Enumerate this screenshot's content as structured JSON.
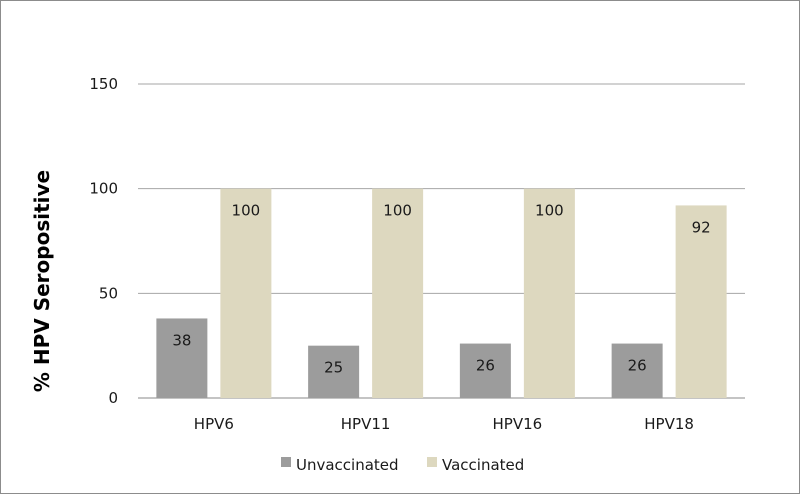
{
  "chart_data": {
    "type": "bar",
    "title": "",
    "xlabel": "",
    "ylabel": "% HPV Seropositive",
    "ylim": [
      0,
      150
    ],
    "yticks": [
      0,
      50,
      100,
      150
    ],
    "grid": true,
    "legend_position": "bottom",
    "categories": [
      "HPV6",
      "HPV11",
      "HPV16",
      "HPV18"
    ],
    "series": [
      {
        "name": "Unvaccinated",
        "color": "#9c9c9c",
        "values": [
          38,
          25,
          26,
          26
        ]
      },
      {
        "name": "Vaccinated",
        "color": "#ddd8bf",
        "values": [
          100,
          100,
          100,
          92
        ]
      }
    ]
  }
}
